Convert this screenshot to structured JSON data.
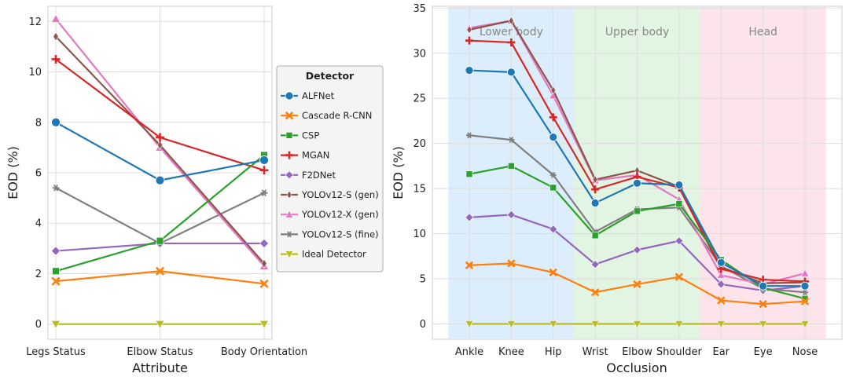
{
  "chart_data": [
    {
      "type": "line",
      "xlabel": "Attribute",
      "ylabel": "EOD (%)",
      "categories": [
        "Legs Status",
        "Elbow Status",
        "Body Orientation"
      ],
      "ylim": [
        -0.6,
        12.6
      ],
      "yticks": [
        0,
        2,
        4,
        6,
        8,
        10,
        12
      ],
      "series": [
        {
          "name": "ALFNet",
          "values": [
            8.0,
            5.7,
            6.5
          ]
        },
        {
          "name": "Cascade R-CNN",
          "values": [
            1.7,
            2.1,
            1.6
          ]
        },
        {
          "name": "CSP",
          "values": [
            2.1,
            3.3,
            6.7
          ]
        },
        {
          "name": "MGAN",
          "values": [
            10.5,
            7.4,
            6.1
          ]
        },
        {
          "name": "F2DNet",
          "values": [
            2.9,
            3.2,
            3.2
          ]
        },
        {
          "name": "YOLOv12-S (gen)",
          "values": [
            11.4,
            7.1,
            2.4
          ]
        },
        {
          "name": "YOLOv12-X (gen)",
          "values": [
            12.1,
            7.0,
            2.3
          ]
        },
        {
          "name": "YOLOv12-S (fine)",
          "values": [
            5.4,
            3.2,
            5.2
          ]
        },
        {
          "name": "Ideal Detector",
          "values": [
            0,
            0,
            0
          ]
        }
      ],
      "legend": {
        "title": "Detector",
        "placement": "right"
      }
    },
    {
      "type": "line",
      "xlabel": "Occlusion",
      "ylabel": "EOD (%)",
      "categories": [
        "Ankle",
        "Knee",
        "Hip",
        "Wrist",
        "Elbow",
        "Shoulder",
        "Ear",
        "Eye",
        "Nose"
      ],
      "ylim": [
        -1.7,
        35.2
      ],
      "yticks": [
        0,
        5,
        10,
        15,
        20,
        25,
        30,
        35
      ],
      "regions": [
        {
          "label": "Lower body",
          "start": 0,
          "end": 2,
          "color": "#dcedfb"
        },
        {
          "label": "Upper body",
          "start": 3,
          "end": 5,
          "color": "#e2f5e2"
        },
        {
          "label": "Head",
          "start": 6,
          "end": 8,
          "color": "#fde4ea"
        }
      ],
      "series": [
        {
          "name": "ALFNet",
          "values": [
            28.1,
            27.9,
            20.7,
            13.4,
            15.6,
            15.4,
            6.8,
            4.2,
            4.2
          ]
        },
        {
          "name": "Cascade R-CNN",
          "values": [
            6.5,
            6.7,
            5.7,
            3.5,
            4.4,
            5.2,
            2.6,
            2.2,
            2.5
          ]
        },
        {
          "name": "CSP",
          "values": [
            16.6,
            17.5,
            15.1,
            9.8,
            12.5,
            13.3,
            7.1,
            4.0,
            2.8
          ]
        },
        {
          "name": "MGAN",
          "values": [
            31.4,
            31.2,
            22.9,
            14.9,
            16.3,
            15.1,
            6.1,
            4.9,
            4.7
          ]
        },
        {
          "name": "F2DNet",
          "values": [
            11.8,
            12.1,
            10.5,
            6.6,
            8.2,
            9.2,
            4.4,
            3.7,
            4.2
          ]
        },
        {
          "name": "YOLOv12-S (gen)",
          "values": [
            32.6,
            33.6,
            25.9,
            16.0,
            17.0,
            15.2,
            6.3,
            4.5,
            4.6
          ]
        },
        {
          "name": "YOLOv12-X (gen)",
          "values": [
            32.8,
            33.6,
            25.3,
            15.9,
            16.5,
            13.8,
            5.4,
            4.4,
            5.6
          ]
        },
        {
          "name": "YOLOv12-S (fine)",
          "values": [
            20.9,
            20.4,
            16.5,
            10.2,
            12.7,
            12.9,
            6.4,
            3.9,
            3.5
          ]
        },
        {
          "name": "Ideal Detector",
          "values": [
            0,
            0,
            0,
            0,
            0,
            0,
            0,
            0,
            0
          ]
        }
      ]
    }
  ],
  "series_style": {
    "ALFNet": {
      "color": "#1f77b4",
      "marker": "circle"
    },
    "Cascade R-CNN": {
      "color": "#ff7f0e",
      "marker": "x"
    },
    "CSP": {
      "color": "#2ca02c",
      "marker": "square"
    },
    "MGAN": {
      "color": "#d62728",
      "marker": "plus"
    },
    "F2DNet": {
      "color": "#9467bd",
      "marker": "diamond"
    },
    "YOLOv12-S (gen)": {
      "color": "#8c564b",
      "marker": "thin-diamond"
    },
    "YOLOv12-X (gen)": {
      "color": "#e377c2",
      "marker": "triangle-up"
    },
    "YOLOv12-S (fine)": {
      "color": "#7f7f7f",
      "marker": "star"
    },
    "Ideal Detector": {
      "color": "#bcbd22",
      "marker": "triangle-down"
    }
  }
}
